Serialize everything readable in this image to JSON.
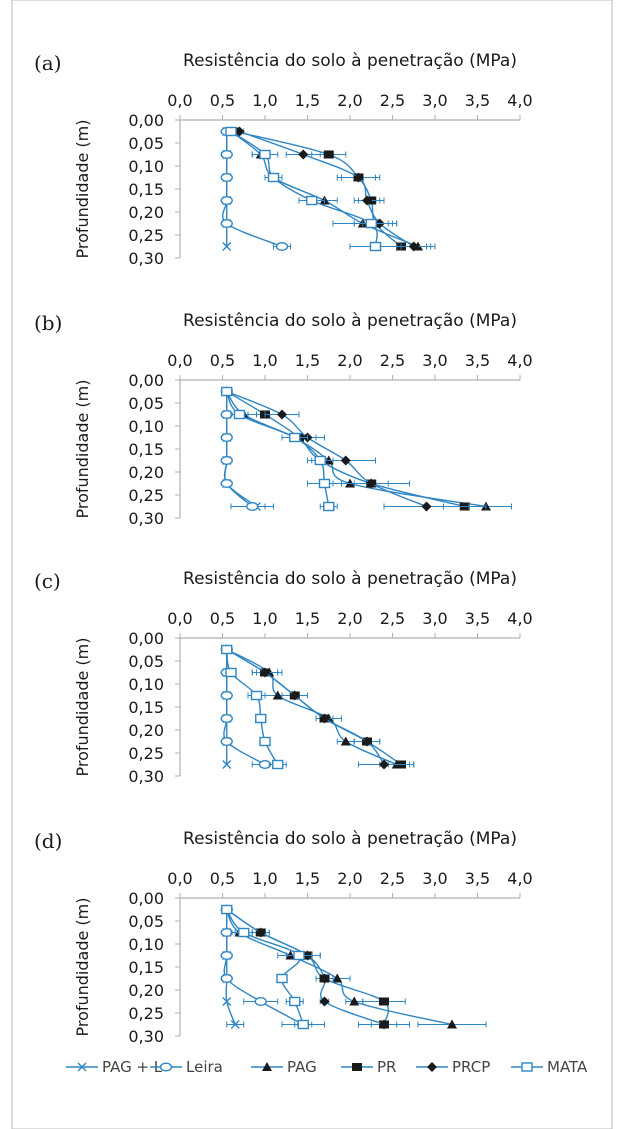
{
  "series_colors": {
    "line": "#2f86c4",
    "dark": "#1a1a1a"
  },
  "legend": [
    "PAG + L",
    "Leira",
    "PAG",
    "PR",
    "PRCP",
    "MATA"
  ],
  "chart_data": [
    {
      "type": "line",
      "panel_label": "(a)",
      "title": "Resistência do solo à penetração (MPa)",
      "ylabel": "Profundidade (m)",
      "x_ticks": [
        "0,0",
        "0,5",
        "1,0",
        "1,5",
        "2,0",
        "2,5",
        "3,0",
        "3,5",
        "4,0"
      ],
      "y_ticks": [
        "0,00",
        "0,05",
        "0,10",
        "0,15",
        "0,20",
        "0,25",
        "0,30"
      ],
      "xlim": [
        0,
        4
      ],
      "ylim": [
        0,
        0.3
      ],
      "depths": [
        0.025,
        0.075,
        0.125,
        0.175,
        0.225,
        0.275
      ],
      "series": [
        {
          "name": "PAG + L",
          "marker": "x",
          "values": [
            0.55,
            0.55,
            0.55,
            0.55,
            0.55,
            0.55
          ],
          "err": [
            0,
            0,
            0,
            0,
            0,
            0
          ]
        },
        {
          "name": "Leira",
          "marker": "circle-open",
          "values": [
            0.55,
            0.55,
            0.55,
            0.55,
            0.55,
            1.2
          ],
          "err": [
            0.03,
            0.03,
            0.03,
            0.03,
            0.03,
            0.1
          ]
        },
        {
          "name": "PAG",
          "marker": "triangle",
          "values": [
            0.6,
            0.95,
            1.1,
            1.7,
            2.15,
            2.8
          ],
          "err": [
            0.05,
            0.1,
            0.1,
            0.15,
            0.35,
            0.2
          ]
        },
        {
          "name": "PR",
          "marker": "square",
          "values": [
            0.65,
            1.75,
            2.1,
            2.25,
            2.3,
            2.6
          ],
          "err": [
            0.05,
            0.2,
            0.2,
            0.15,
            0.25,
            0.3
          ]
        },
        {
          "name": "PRCP",
          "marker": "diamond",
          "values": [
            0.7,
            1.45,
            2.1,
            2.2,
            2.35,
            2.75
          ],
          "err": [
            0.05,
            0.2,
            0.25,
            0.15,
            0.2,
            0.2
          ]
        },
        {
          "name": "MATA",
          "marker": "square-open",
          "values": [
            0.6,
            1.0,
            1.1,
            1.55,
            2.25,
            2.3
          ],
          "err": [
            0.05,
            0.15,
            0.1,
            0.15,
            0.2,
            0.3
          ]
        }
      ]
    },
    {
      "type": "line",
      "panel_label": "(b)",
      "title": "Resistência do solo à penetração (MPa)",
      "ylabel": "Profundidade (m)",
      "x_ticks": [
        "0,0",
        "0,5",
        "1,0",
        "1,5",
        "2,0",
        "2,5",
        "3,0",
        "3,5",
        "4,0"
      ],
      "y_ticks": [
        "0,00",
        "0,05",
        "0,10",
        "0,15",
        "0,20",
        "0,25",
        "0,30"
      ],
      "xlim": [
        0,
        4
      ],
      "ylim": [
        0,
        0.3
      ],
      "depths": [
        0.025,
        0.075,
        0.125,
        0.175,
        0.225,
        0.275
      ],
      "series": [
        {
          "name": "PAG + L",
          "marker": "x",
          "values": [
            0.55,
            0.55,
            0.55,
            0.55,
            0.55,
            0.9
          ],
          "err": [
            0,
            0,
            0,
            0,
            0,
            0.1
          ]
        },
        {
          "name": "Leira",
          "marker": "circle-open",
          "values": [
            0.55,
            0.55,
            0.55,
            0.55,
            0.55,
            0.85
          ],
          "err": [
            0.03,
            0.03,
            0.03,
            0.03,
            0.03,
            0.25
          ]
        },
        {
          "name": "PAG",
          "marker": "triangle",
          "values": [
            0.55,
            0.75,
            1.35,
            1.75,
            2.0,
            3.6
          ],
          "err": [
            0.05,
            0.15,
            0.15,
            0.2,
            0.3,
            0.3
          ]
        },
        {
          "name": "PR",
          "marker": "square",
          "values": [
            0.55,
            1.0,
            1.4,
            1.65,
            2.25,
            3.35
          ],
          "err": [
            0.05,
            0.2,
            0.2,
            0.15,
            0.2,
            0.25
          ]
        },
        {
          "name": "PRCP",
          "marker": "diamond",
          "values": [
            0.55,
            1.2,
            1.5,
            1.95,
            2.25,
            2.9
          ],
          "err": [
            0.05,
            0.2,
            0.2,
            0.35,
            0.45,
            0.5
          ]
        },
        {
          "name": "MATA",
          "marker": "square-open",
          "values": [
            0.55,
            0.7,
            1.35,
            1.65,
            1.7,
            1.75
          ],
          "err": [
            0.05,
            0.1,
            0.15,
            0.15,
            0.2,
            0.1
          ]
        }
      ]
    },
    {
      "type": "line",
      "panel_label": "(c)",
      "title": "Resistência do solo à penetração (MPa)",
      "ylabel": "Profundidade (m)",
      "x_ticks": [
        "0,0",
        "0,5",
        "1,0",
        "1,5",
        "2,0",
        "2,5",
        "3,0",
        "3,5",
        "4,0"
      ],
      "y_ticks": [
        "0,00",
        "0,05",
        "0,10",
        "0,15",
        "0,20",
        "0,25",
        "0,30"
      ],
      "xlim": [
        0,
        4
      ],
      "ylim": [
        0,
        0.3
      ],
      "depths": [
        0.025,
        0.075,
        0.125,
        0.175,
        0.225,
        0.275
      ],
      "series": [
        {
          "name": "PAG + L",
          "marker": "x",
          "values": [
            0.55,
            0.55,
            0.55,
            0.55,
            0.55,
            0.55
          ],
          "err": [
            0,
            0,
            0,
            0,
            0,
            0
          ]
        },
        {
          "name": "Leira",
          "marker": "circle-open",
          "values": [
            0.55,
            0.55,
            0.55,
            0.55,
            0.55,
            1.0
          ],
          "err": [
            0.03,
            0.03,
            0.03,
            0.03,
            0.03,
            0.15
          ]
        },
        {
          "name": "PAG",
          "marker": "triangle",
          "values": [
            0.55,
            1.05,
            1.15,
            1.75,
            1.95,
            2.55
          ],
          "err": [
            0.03,
            0.15,
            0.15,
            0.15,
            0.1,
            0.2
          ]
        },
        {
          "name": "PR",
          "marker": "square",
          "values": [
            0.55,
            1.0,
            1.35,
            1.7,
            2.2,
            2.6
          ],
          "err": [
            0.03,
            0.15,
            0.15,
            0.1,
            0.15,
            0.15
          ]
        },
        {
          "name": "PRCP",
          "marker": "diamond",
          "values": [
            0.55,
            1.0,
            1.35,
            1.7,
            2.2,
            2.4
          ],
          "err": [
            0.03,
            0.15,
            0.15,
            0.1,
            0.15,
            0.3
          ]
        },
        {
          "name": "MATA",
          "marker": "square-open",
          "values": [
            0.55,
            0.6,
            0.9,
            0.95,
            1.0,
            1.15
          ],
          "err": [
            0.03,
            0.05,
            0.1,
            0.05,
            0.05,
            0.1
          ]
        }
      ]
    },
    {
      "type": "line",
      "panel_label": "(d)",
      "title": "Resistência do solo à penetração (MPa)",
      "ylabel": "Profundidade (m)",
      "x_ticks": [
        "0,0",
        "0,5",
        "1,0",
        "1,5",
        "2,0",
        "2,5",
        "3,0",
        "3,5",
        "4,0"
      ],
      "y_ticks": [
        "0,00",
        "0,05",
        "0,10",
        "0,15",
        "0,20",
        "0,25",
        "0,30"
      ],
      "xlim": [
        0,
        4
      ],
      "ylim": [
        0,
        0.3
      ],
      "depths": [
        0.025,
        0.075,
        0.125,
        0.175,
        0.225,
        0.275
      ],
      "series": [
        {
          "name": "PAG + L",
          "marker": "x",
          "values": [
            0.55,
            0.55,
            0.55,
            0.55,
            0.55,
            0.65
          ],
          "err": [
            0,
            0,
            0,
            0,
            0,
            0.1
          ]
        },
        {
          "name": "Leira",
          "marker": "circle-open",
          "values": [
            0.55,
            0.55,
            0.55,
            0.55,
            0.95,
            1.45
          ],
          "err": [
            0.03,
            0.03,
            0.03,
            0.03,
            0.2,
            0.25
          ]
        },
        {
          "name": "PAG",
          "marker": "triangle",
          "values": [
            0.55,
            0.7,
            1.3,
            1.85,
            2.05,
            3.2
          ],
          "err": [
            0.05,
            0.1,
            0.15,
            0.15,
            0.1,
            0.4
          ]
        },
        {
          "name": "PR",
          "marker": "square",
          "values": [
            0.55,
            0.95,
            1.5,
            1.7,
            2.4,
            2.4
          ],
          "err": [
            0.05,
            0.1,
            0.15,
            0.1,
            0.25,
            0.15
          ]
        },
        {
          "name": "PRCP",
          "marker": "diamond",
          "values": [
            0.55,
            0.95,
            1.5,
            1.7,
            1.7,
            2.4
          ],
          "err": [
            0.05,
            0.1,
            0.15,
            0.1,
            0.05,
            0.3
          ]
        },
        {
          "name": "MATA",
          "marker": "square-open",
          "values": [
            0.55,
            0.75,
            1.4,
            1.2,
            1.35,
            1.45
          ],
          "err": [
            0.05,
            0.1,
            0.15,
            0.05,
            0.1,
            0.1
          ]
        }
      ]
    }
  ]
}
